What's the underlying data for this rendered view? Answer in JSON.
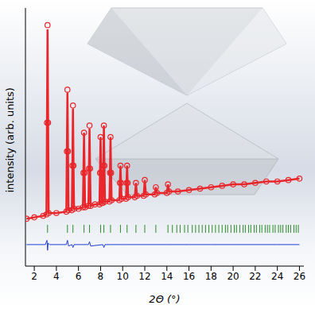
{
  "chart_data": {
    "type": "scatter",
    "xlabel": "2Θ (°)",
    "ylabel": "intensity (arb. units)",
    "xlim": [
      1.2,
      26.4
    ],
    "xticks": [
      2,
      4,
      6,
      8,
      10,
      12,
      14,
      16,
      18,
      20,
      22,
      24,
      26
    ],
    "ylim": [
      0,
      180
    ],
    "tick_labels": "x",
    "grid": false,
    "x": [
      1.3,
      2.0,
      2.8,
      3.1,
      3.15,
      3.2,
      3.25,
      3.3,
      4.0,
      4.9,
      4.95,
      5.0,
      5.05,
      5.1,
      5.4,
      5.45,
      5.5,
      5.55,
      5.6,
      6.0,
      6.4,
      6.45,
      6.5,
      6.55,
      6.6,
      6.9,
      6.95,
      7.0,
      7.05,
      7.1,
      7.5,
      7.9,
      7.95,
      8.0,
      8.05,
      8.1,
      8.2,
      8.25,
      8.3,
      8.35,
      8.4,
      8.8,
      8.85,
      8.9,
      8.95,
      9.0,
      9.7,
      9.75,
      9.8,
      9.85,
      9.9,
      10.3,
      10.35,
      10.4,
      10.45,
      10.5,
      11.1,
      11.2,
      11.3,
      11.9,
      12.0,
      12.1,
      12.9,
      13.0,
      13.1,
      14.0,
      14.1,
      14.2,
      15,
      16,
      17,
      18,
      19,
      20,
      21,
      22,
      23,
      24,
      25,
      26
    ],
    "series": [
      {
        "type": "scatter",
        "marker": "circle",
        "color": "#e8262b",
        "values": [
          33,
          34,
          35,
          36,
          100,
          168,
          100,
          37,
          37,
          38,
          80,
          123,
          80,
          39,
          39,
          70,
          112,
          70,
          40,
          40,
          41,
          65,
          93,
          65,
          41,
          42,
          68,
          98,
          68,
          42,
          43,
          43,
          65,
          90,
          65,
          44,
          44,
          70,
          98,
          70,
          45,
          45,
          65,
          90,
          65,
          46,
          46,
          58,
          70,
          58,
          47,
          47,
          58,
          70,
          58,
          48,
          48,
          58,
          49,
          49,
          60,
          50,
          50,
          55,
          51,
          51,
          57,
          52,
          52,
          53,
          54,
          55,
          56,
          57,
          57,
          58,
          59,
          59,
          60,
          61
        ]
      },
      {
        "type": "line",
        "line_style": "solid",
        "color": "#e8262b",
        "values": [
          33,
          34,
          35,
          36,
          100,
          165,
          100,
          37,
          37,
          38,
          80,
          121,
          80,
          39,
          39,
          70,
          110,
          70,
          40,
          40,
          41,
          65,
          93,
          65,
          41,
          42,
          68,
          96,
          68,
          42,
          43,
          43,
          65,
          90,
          65,
          44,
          44,
          70,
          98,
          70,
          45,
          45,
          65,
          90,
          65,
          46,
          46,
          58,
          70,
          58,
          47,
          47,
          58,
          70,
          58,
          48,
          48,
          58,
          49,
          49,
          60,
          50,
          50,
          55,
          51,
          51,
          57,
          52,
          52,
          53,
          54,
          55,
          56,
          57,
          57,
          58,
          59,
          59,
          60,
          61
        ]
      },
      {
        "type": "line",
        "line_style": "solid",
        "color": "#1f3fd6",
        "x": [
          1.3,
          3.0,
          3.15,
          3.2,
          3.25,
          3.4,
          4.9,
          5.0,
          5.1,
          5.4,
          5.5,
          5.6,
          6.9,
          7.0,
          7.1,
          8.2,
          8.3,
          8.4,
          10,
          12,
          14,
          16,
          18,
          20,
          22,
          24,
          26
        ],
        "values": [
          15,
          15,
          18,
          11,
          16,
          15,
          15,
          18,
          14,
          15,
          13,
          15,
          15,
          17,
          14,
          15,
          13,
          15,
          15,
          15,
          15,
          15,
          15,
          15,
          15,
          15,
          15
        ]
      },
      {
        "type": "scatter",
        "marker": "vline",
        "color": "#2e8b2e",
        "x": [
          3.2,
          5.0,
          5.5,
          6.5,
          7.0,
          8.0,
          8.3,
          8.9,
          9.8,
          10.4,
          11.2,
          12.0,
          13.0,
          14.1,
          14.5,
          14.9,
          15.2,
          15.6,
          15.9,
          16.3,
          16.6,
          16.9,
          17.2,
          17.5,
          17.8,
          18.1,
          18.4,
          18.7,
          19.0,
          19.3,
          19.5,
          19.8,
          20.1,
          20.3,
          20.6,
          20.9,
          21.1,
          21.4,
          21.6,
          21.9,
          22.1,
          22.4,
          22.6,
          22.9,
          23.1,
          23.3,
          23.6,
          23.8,
          24.1,
          24.3,
          24.5,
          24.8,
          25.0,
          25.2,
          25.5,
          25.7,
          25.9
        ],
        "values": [
          26,
          26,
          26,
          26,
          26,
          26,
          26,
          26,
          26,
          26,
          26,
          26,
          26,
          26,
          26,
          26,
          26,
          26,
          26,
          26,
          26,
          26,
          26,
          26,
          26,
          26,
          26,
          26,
          26,
          26,
          26,
          26,
          26,
          26,
          26,
          26,
          26,
          26,
          26,
          26,
          26,
          26,
          26,
          26,
          26,
          26,
          26,
          26,
          26,
          26,
          26,
          26,
          26,
          26,
          26,
          26,
          26
        ]
      }
    ]
  }
}
